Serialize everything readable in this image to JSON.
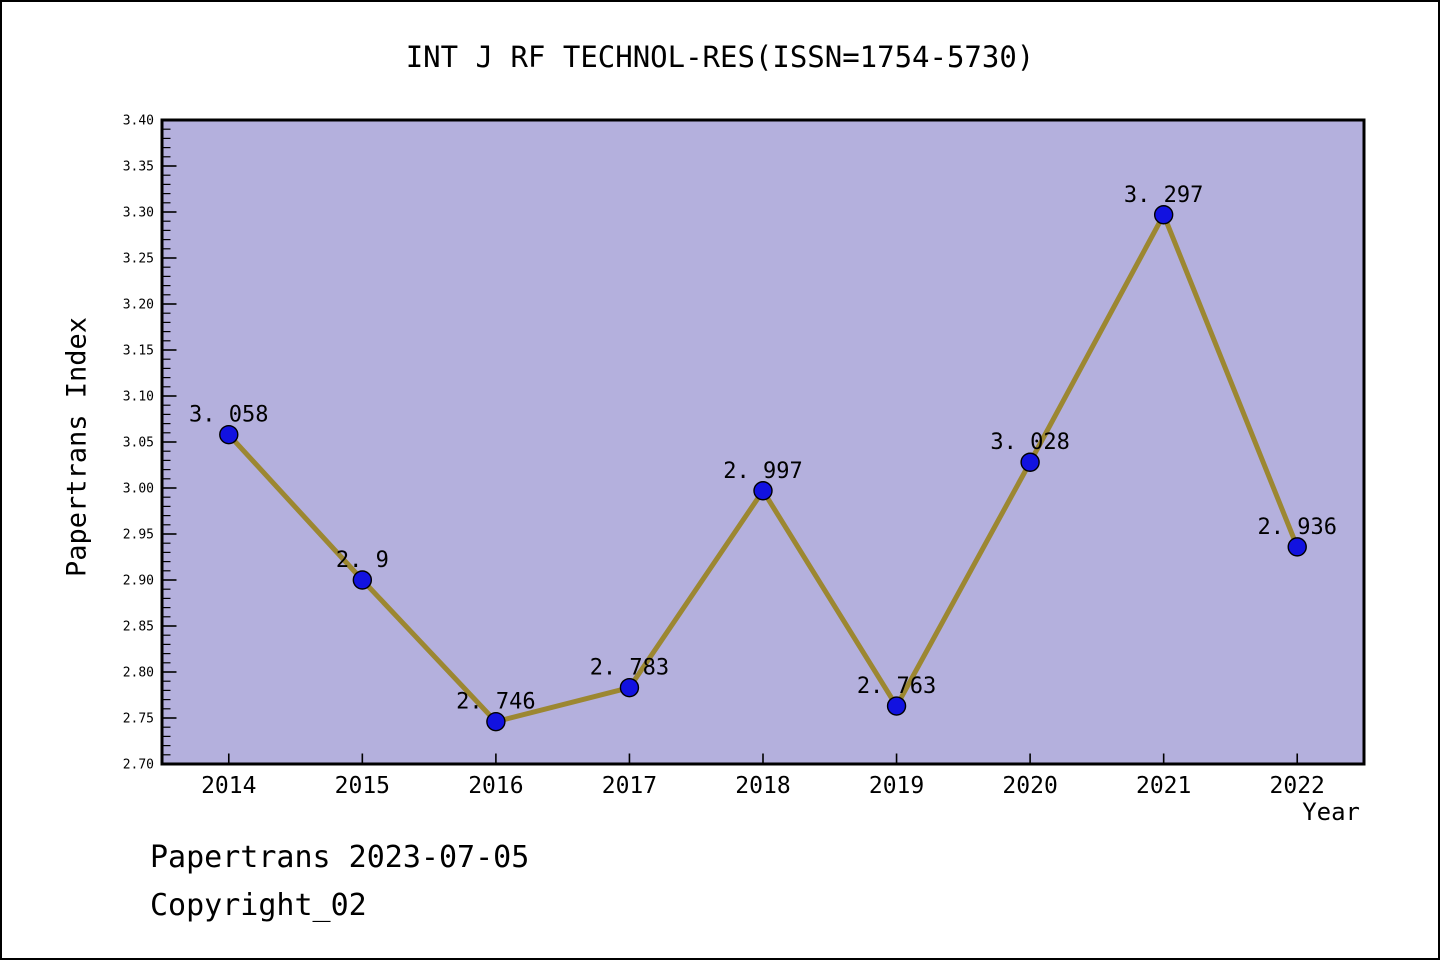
{
  "title": "INT J RF TECHNOL-RES(ISSN=1754-5730)",
  "footer": {
    "line1": "Papertrans 2023-07-05",
    "line2": "Copyright_02"
  },
  "chart_data": {
    "type": "line",
    "title": "INT J RF TECHNOL-RES(ISSN=1754-5730)",
    "xlabel": "Year",
    "ylabel": "Papertrans Index",
    "x": [
      2014,
      2015,
      2016,
      2017,
      2018,
      2019,
      2020,
      2021,
      2022
    ],
    "values": [
      3.058,
      2.9,
      2.746,
      2.783,
      2.997,
      2.763,
      3.028,
      3.297,
      2.936
    ],
    "point_labels": [
      "3. 058",
      "2. 9",
      "2. 746",
      "2. 783",
      "2. 997",
      "2. 763",
      "3. 028",
      "3. 297",
      "2. 936"
    ],
    "series_name": "Papertrans Index",
    "xlim": [
      2013.5,
      2022.5
    ],
    "ylim": [
      2.7,
      3.4
    ],
    "y_major_ticks": [
      "2.70",
      "2.75",
      "2.80",
      "2.85",
      "2.90",
      "2.95",
      "3.00",
      "3.05",
      "3.10",
      "3.15",
      "3.20",
      "3.25",
      "3.30",
      "3.35",
      "3.40"
    ],
    "y_minor_step": 0.01,
    "x_tick_labels": [
      "2014",
      "2015",
      "2016",
      "2017",
      "2018",
      "2019",
      "2020",
      "2021",
      "2022"
    ],
    "grid": false,
    "legend": "none",
    "tick_direction": "in",
    "colors": {
      "plot_bg": "#b4b0dd",
      "line": "#9c8731",
      "marker": "#1212e0",
      "marker_edge": "#000000",
      "frame": "#000000",
      "text": "#000000"
    }
  }
}
